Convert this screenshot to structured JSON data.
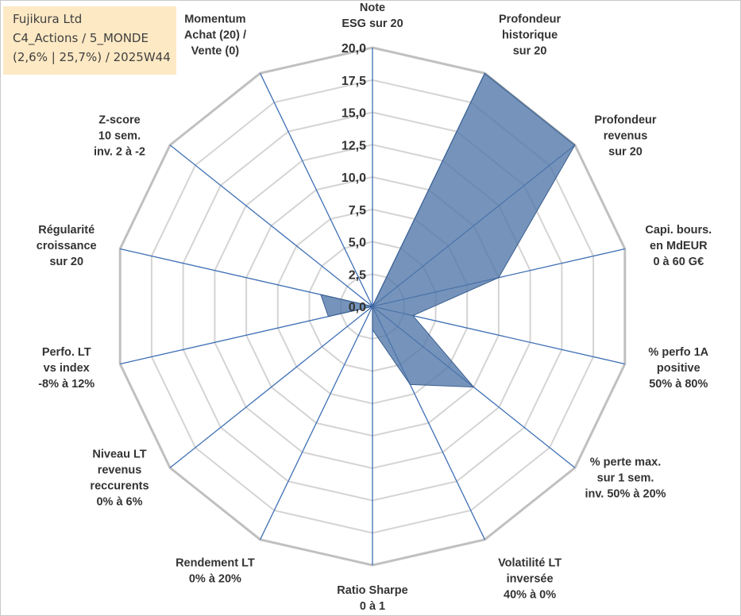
{
  "info": {
    "line1": "Fujikura Ltd",
    "line2": "C4_Actions / 5_MONDE",
    "line3": "(2,6% | 25,7%) / 2025W44"
  },
  "chart_data": {
    "type": "radar",
    "title": "Fujikura Ltd",
    "rmin": 0,
    "rmax": 20,
    "rticks": [
      "0,0",
      "2,5",
      "5,0",
      "7,5",
      "10,0",
      "12,5",
      "15,0",
      "17,5",
      "20,0"
    ],
    "categories": [
      [
        "Note",
        "ESG sur 20"
      ],
      [
        "Profondeur",
        "historique",
        "sur 20"
      ],
      [
        "Profondeur",
        "revenus",
        "sur 20"
      ],
      [
        "Capi. bours.",
        "en MdEUR",
        "0 à 60 G€"
      ],
      [
        "% perfo 1A",
        "positive",
        "50% à 80%"
      ],
      [
        "% perte max.",
        "sur 1 sem.",
        "inv. 50% à 20%"
      ],
      [
        "Volatilité LT",
        "inversée",
        "40% à 0%"
      ],
      [
        "Ratio Sharpe",
        "0 à 1"
      ],
      [
        "Rendement LT",
        "0% à 20%"
      ],
      [
        "Niveau LT",
        "revenus",
        "reccurents",
        "0% à 6%"
      ],
      [
        "Perfo. LT",
        "vs index",
        "-8% à 12%"
      ],
      [
        "Régularité",
        "croissance",
        "sur 20"
      ],
      [
        "Z-score",
        "10 sem.",
        "inv. 2 à -2"
      ],
      [
        "Momentum",
        "Achat (20) /",
        "Vente (0)"
      ]
    ],
    "series": [
      {
        "name": "Fujikura Ltd",
        "color": "#4f76a8",
        "values": [
          0,
          20,
          20,
          10,
          3.2,
          10,
          6.7,
          1.8,
          0,
          0,
          3.5,
          4.1,
          0,
          0
        ]
      }
    ]
  }
}
